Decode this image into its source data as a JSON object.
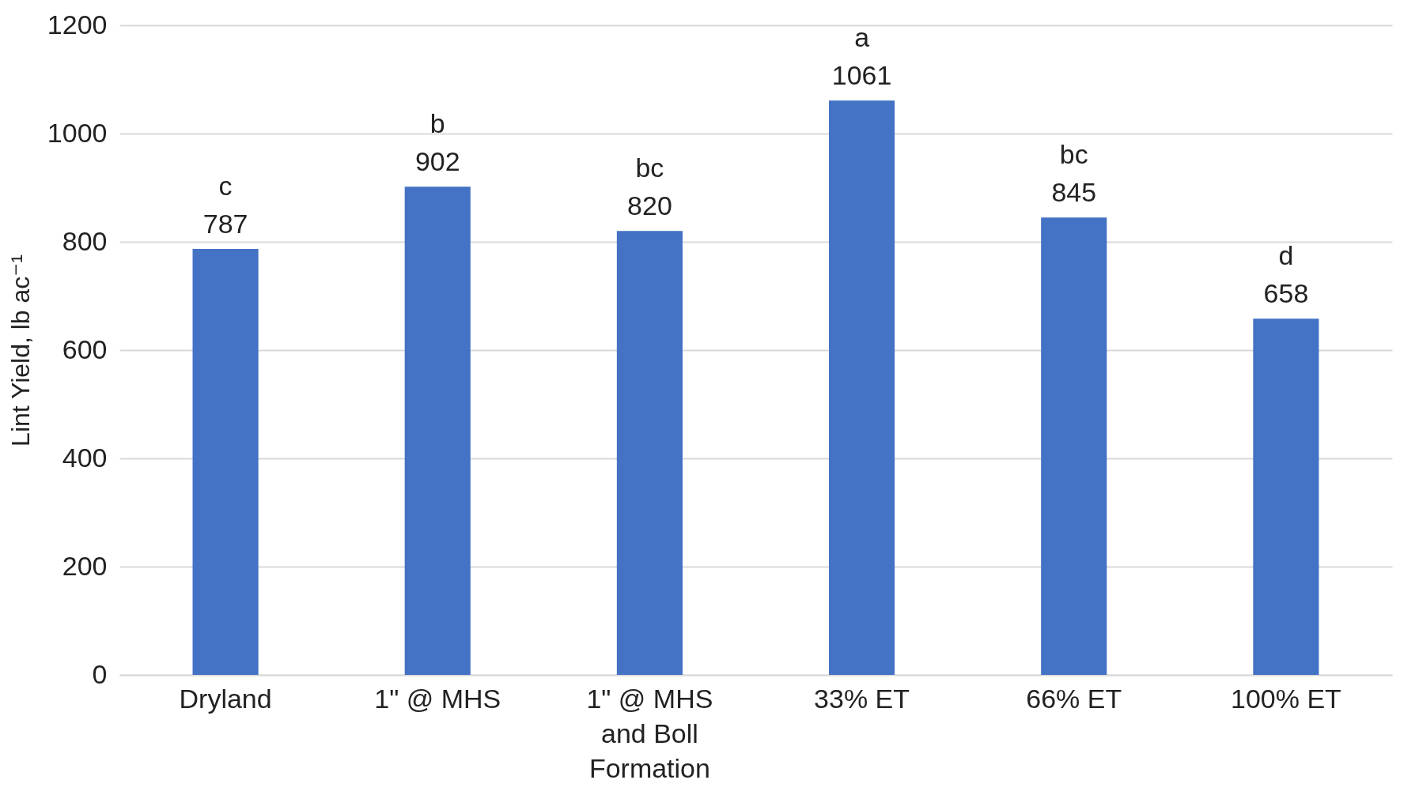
{
  "chart_data": {
    "type": "bar",
    "ylabel": "Lint Yield, lb ac⁻¹",
    "categories": [
      "Dryland",
      "1\" @ MHS",
      "1\" @ MHS and Boll Formation",
      "33% ET",
      "66% ET",
      "100% ET"
    ],
    "values": [
      787,
      902,
      820,
      1061,
      845,
      658
    ],
    "color": "#4472c4",
    "ylim": [
      0,
      1200
    ],
    "yticks": [
      0,
      200,
      400,
      600,
      800,
      1000,
      1200
    ],
    "grid": "y",
    "data_labels": true,
    "annotations": [
      {
        "text": "c",
        "x": "Dryland",
        "y": 787
      },
      {
        "text": "b",
        "x": "1\" @ MHS",
        "y": 902
      },
      {
        "text": "bc",
        "x": "1\" @ MHS and Boll Formation",
        "y": 820
      },
      {
        "text": "a",
        "x": "33% ET",
        "y": 1061
      },
      {
        "text": "bc",
        "x": "66% ET",
        "y": 845
      },
      {
        "text": "d",
        "x": "100% ET",
        "y": 658
      }
    ]
  }
}
